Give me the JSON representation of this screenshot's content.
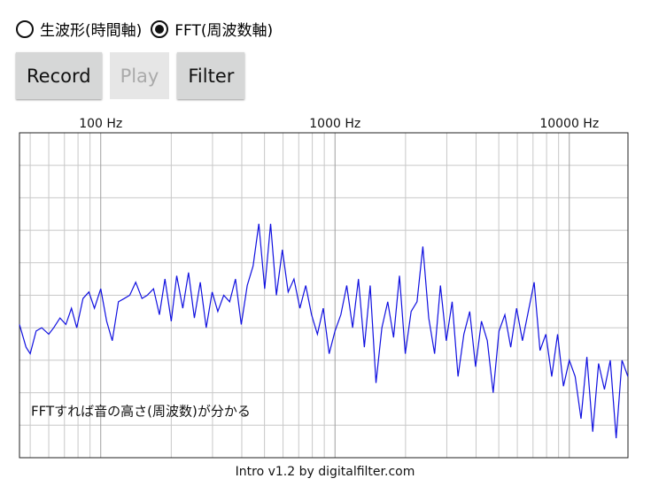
{
  "radio": {
    "options": [
      "生波形(時間軸)",
      "FFT(周波数軸)"
    ],
    "selected": 1
  },
  "buttons": [
    {
      "label": "Record",
      "disabled": false
    },
    {
      "label": "Play",
      "disabled": true
    },
    {
      "label": "Filter",
      "disabled": false
    }
  ],
  "chart_data": {
    "type": "line",
    "xscale": "log",
    "xlim": [
      45,
      17800
    ],
    "xticks": [
      {
        "value": 100,
        "label": "100 Hz"
      },
      {
        "value": 1000,
        "label": "1000 Hz"
      },
      {
        "value": 10000,
        "label": "10000 Hz"
      }
    ],
    "xminor": [
      50,
      60,
      70,
      80,
      90,
      200,
      300,
      400,
      500,
      600,
      700,
      800,
      900,
      2000,
      3000,
      4000,
      5000,
      6000,
      7000,
      8000,
      9000
    ],
    "ylim": [
      0,
      10
    ],
    "yticks": [
      0,
      1,
      2,
      3,
      4,
      5,
      6,
      7,
      8,
      9,
      10
    ],
    "grid": true,
    "color": "#1010e0",
    "annotation": "FFTすれば音の高さ(周波数)が分かる",
    "x": [
      45,
      48,
      50,
      53,
      56,
      60,
      63,
      67,
      71,
      75,
      79,
      84,
      89,
      94,
      100,
      106,
      112,
      119,
      126,
      133,
      141,
      150,
      158,
      168,
      178,
      188,
      200,
      211,
      224,
      237,
      251,
      266,
      282,
      299,
      316,
      335,
      355,
      376,
      398,
      422,
      447,
      473,
      501,
      531,
      562,
      596,
      631,
      668,
      708,
      750,
      794,
      841,
      891,
      944,
      1000,
      1059,
      1122,
      1189,
      1259,
      1334,
      1413,
      1496,
      1585,
      1679,
      1778,
      1884,
      1995,
      2113,
      2239,
      2371,
      2512,
      2661,
      2818,
      2985,
      3162,
      3350,
      3548,
      3758,
      3981,
      4217,
      4467,
      4732,
      5012,
      5309,
      5623,
      5957,
      6310,
      6683,
      7079,
      7499,
      7943,
      8414,
      8913,
      9441,
      10000,
      10593,
      11220,
      11885,
      12589,
      13335,
      14125,
      14962,
      15849,
      16788,
      17783
    ],
    "values": [
      4.1,
      3.4,
      3.2,
      3.9,
      4.0,
      3.8,
      4.0,
      4.3,
      4.1,
      4.6,
      4.0,
      4.9,
      5.1,
      4.6,
      5.2,
      4.2,
      3.6,
      4.8,
      4.9,
      5.0,
      5.4,
      4.9,
      5.0,
      5.2,
      4.4,
      5.5,
      4.2,
      5.6,
      4.6,
      5.7,
      4.3,
      5.4,
      4.0,
      5.1,
      4.5,
      5.0,
      4.8,
      5.5,
      4.1,
      5.3,
      5.9,
      7.2,
      5.2,
      7.2,
      5.0,
      6.4,
      5.1,
      5.5,
      4.6,
      5.3,
      4.4,
      3.8,
      4.6,
      3.2,
      3.9,
      4.4,
      5.3,
      4.0,
      5.5,
      3.4,
      5.3,
      2.3,
      4.0,
      4.8,
      3.7,
      5.6,
      3.2,
      4.5,
      4.8,
      6.5,
      4.3,
      3.2,
      5.3,
      3.6,
      4.8,
      2.5,
      3.8,
      4.5,
      2.8,
      4.2,
      3.6,
      2.0,
      3.9,
      4.4,
      3.4,
      4.6,
      3.6,
      4.5,
      5.4,
      3.3,
      3.8,
      2.5,
      3.8,
      2.2,
      3.0,
      2.5,
      1.2,
      3.1,
      0.8,
      2.9,
      2.1,
      3.0,
      0.6,
      3.0,
      2.5
    ]
  },
  "footer": "Intro v1.2 by digitalfilter.com"
}
